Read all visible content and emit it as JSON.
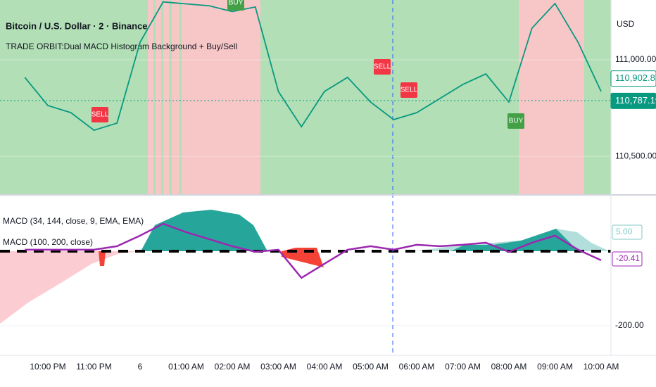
{
  "chart_data": {
    "type": "line",
    "title": "Bitcoin / U.S. Dollar · 2 · Binance",
    "subtitle": "TRADE ORBIT:Dual MACD Histogram Background + Buy/Sell",
    "annotations": [
      "MACD (100, 200, close)"
    ],
    "currency_label": "USD",
    "categories": [
      null,
      "10:00 PM",
      null,
      "11:00 PM",
      null,
      "6",
      null,
      "01:00 AM",
      null,
      "02:00 AM",
      null,
      "03:00 AM",
      null,
      "04:00 AM",
      null,
      "05:00 AM",
      null,
      "06:00 AM",
      null,
      "07:00 AM",
      null,
      "08:00 AM",
      null,
      "09:00 AM",
      null,
      "10:00 AM"
    ],
    "series": [
      {
        "name": "Bitcoin / U.S. Dollar · 2 · Binance",
        "color": "#089981",
        "values": [
          110909,
          110763,
          110726,
          110635,
          110672,
          111091,
          111300,
          111290,
          111280,
          111250,
          111274,
          110836,
          110653,
          110836,
          110909,
          110781,
          110690,
          110726,
          110799,
          110872,
          110927,
          110781,
          111164,
          111292,
          111091,
          110836
        ]
      },
      {
        "name": "MACD (34, 144, close, 9, EMA, EMA)",
        "color": "#9c27b0",
        "axis": "y2",
        "values": [
          -33.5,
          -33.5,
          -33.5,
          -33.5,
          -25.8,
          -2.7,
          23.5,
          5,
          -10.4,
          -25.8,
          -38.1,
          -33.5,
          -95.2,
          -64.3,
          -33.5,
          -25.8,
          -33.5,
          -22.7,
          -25.8,
          -22.7,
          -18.1,
          -38.1,
          -18.1,
          -2.7,
          -33.5,
          -56.6
        ]
      }
    ],
    "ylim": [
      110307,
      111310
    ],
    "yticks": [
      {
        "value": 111000,
        "label": "111,000.00"
      },
      {
        "value": 110500,
        "label": "110,500.00"
      }
    ],
    "price_labels": [
      {
        "value": 110902.82,
        "label": "110,902.82"
      },
      {
        "value": 110787.19,
        "label": "110,787.19"
      }
    ],
    "y2lim": [
      -265,
      82
    ],
    "y2ticks": [
      {
        "value": -200,
        "label": "-200.00"
      }
    ],
    "macd_badges": [
      "5.00",
      "-20.41"
    ],
    "signals": [
      "BUY",
      "SELL",
      "SELL",
      "SELL",
      "BUY"
    ],
    "grid": true
  }
}
